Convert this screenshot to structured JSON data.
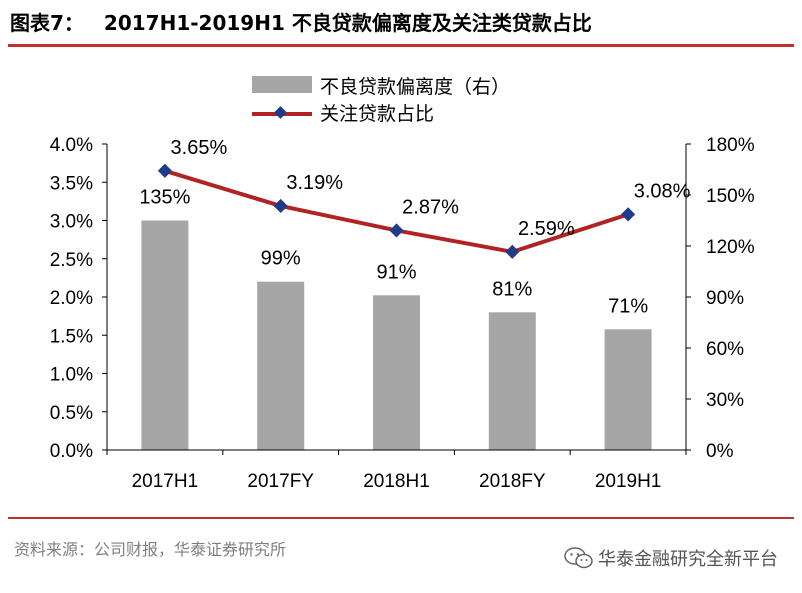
{
  "header": {
    "figure_label": "图表7：",
    "title": "2017H1-2019H1 不良贷款偏离度及关注类贷款占比",
    "accent_color": "#c0302e"
  },
  "footer": {
    "source": "资料来源：公司财报，华泰证券研究所",
    "watermark": "华泰金融研究全新平台",
    "watermark_icon": "wechat-icon"
  },
  "chart_data": {
    "type": "bar",
    "categories": [
      "2017H1",
      "2017FY",
      "2018H1",
      "2018FY",
      "2019H1"
    ],
    "series": [
      {
        "name": "不良贷款偏离度（右）",
        "type": "bar",
        "axis": "right",
        "values": [
          135,
          99,
          91,
          81,
          71
        ],
        "labels": [
          "135%",
          "99%",
          "91%",
          "81%",
          "71%"
        ],
        "color": "#a6a6a6"
      },
      {
        "name": "关注贷款占比",
        "type": "line",
        "axis": "left",
        "values": [
          3.65,
          3.19,
          2.87,
          2.59,
          3.08
        ],
        "labels": [
          "3.65%",
          "3.19%",
          "2.87%",
          "2.59%",
          "3.08%"
        ],
        "color": "#b22222",
        "marker_color": "#1f3c88"
      }
    ],
    "left_axis": {
      "ylim": [
        0,
        4.0
      ],
      "ticks": [
        "0.0%",
        "0.5%",
        "1.0%",
        "1.5%",
        "2.0%",
        "2.5%",
        "3.0%",
        "3.5%",
        "4.0%"
      ]
    },
    "right_axis": {
      "ylim": [
        0,
        180
      ],
      "ticks": [
        "0%",
        "30%",
        "60%",
        "90%",
        "120%",
        "150%",
        "180%"
      ]
    },
    "legend_position": "top-center",
    "grid": false
  }
}
